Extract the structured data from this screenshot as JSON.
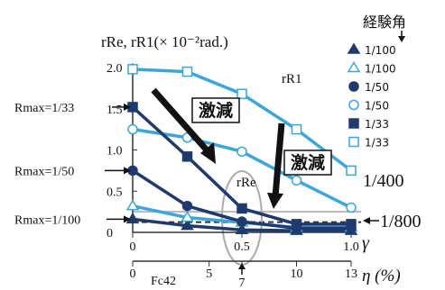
{
  "chart_data": {
    "type": "line",
    "title": "rRe, rR1(× 10⁻²rad.)",
    "legend_title": "経験角",
    "legend_position": "top-right",
    "x": [
      0,
      0.25,
      0.5,
      0.75,
      1.0
    ],
    "x_axis_gamma": {
      "label": "γ",
      "ticks": [
        "0",
        "0.5",
        "1.0"
      ],
      "range": [
        0,
        1.0
      ]
    },
    "x_axis_eta": {
      "label": "η (%)",
      "ticks": [
        "0",
        "5",
        "7",
        "10",
        "13"
      ],
      "note": "Fc42"
    },
    "y_axis": {
      "ticks": [
        "0",
        "0.5",
        "1.0",
        "1.5",
        "2.0"
      ],
      "range": [
        0,
        2.0
      ]
    },
    "grid": false,
    "series": [
      {
        "name": "1/100",
        "marker": "filled-triangle",
        "color": "#1f3b6e",
        "values": [
          0.16,
          0.08,
          0.03,
          0.02,
          0.02
        ]
      },
      {
        "name": "1/100",
        "marker": "open-triangle",
        "color": "#3aa6dc",
        "values": [
          0.32,
          0.18,
          0.12,
          0.06,
          0.06
        ]
      },
      {
        "name": "1/50",
        "marker": "filled-circle",
        "color": "#1f3b6e",
        "values": [
          0.75,
          0.32,
          0.13,
          0.05,
          0.05
        ]
      },
      {
        "name": "1/50",
        "marker": "open-circle",
        "color": "#3aa6dc",
        "values": [
          1.25,
          1.15,
          0.98,
          0.63,
          0.3
        ]
      },
      {
        "name": "1/33",
        "marker": "filled-square",
        "color": "#1f3b6e",
        "values": [
          1.52,
          0.92,
          0.29,
          0.1,
          0.1
        ]
      },
      {
        "name": "1/33",
        "marker": "open-square",
        "color": "#3aa6dc",
        "values": [
          1.98,
          1.95,
          1.68,
          1.25,
          0.75
        ]
      }
    ],
    "reference_lines": [
      {
        "label": "1/400",
        "value": 0.25,
        "style": "solid",
        "color": "#b8b8b8"
      },
      {
        "label": "1/800",
        "value": 0.125,
        "style": "dashed",
        "color": "#333333"
      }
    ],
    "annotations": {
      "rmax_33": "Rmax=1/33",
      "rmax_50": "Rmax=1/50",
      "rmax_100": "Rmax=1/100",
      "decrease_1": "激減",
      "decrease_2": "激減",
      "label_r1": "rR1",
      "label_re": "rRe"
    }
  }
}
